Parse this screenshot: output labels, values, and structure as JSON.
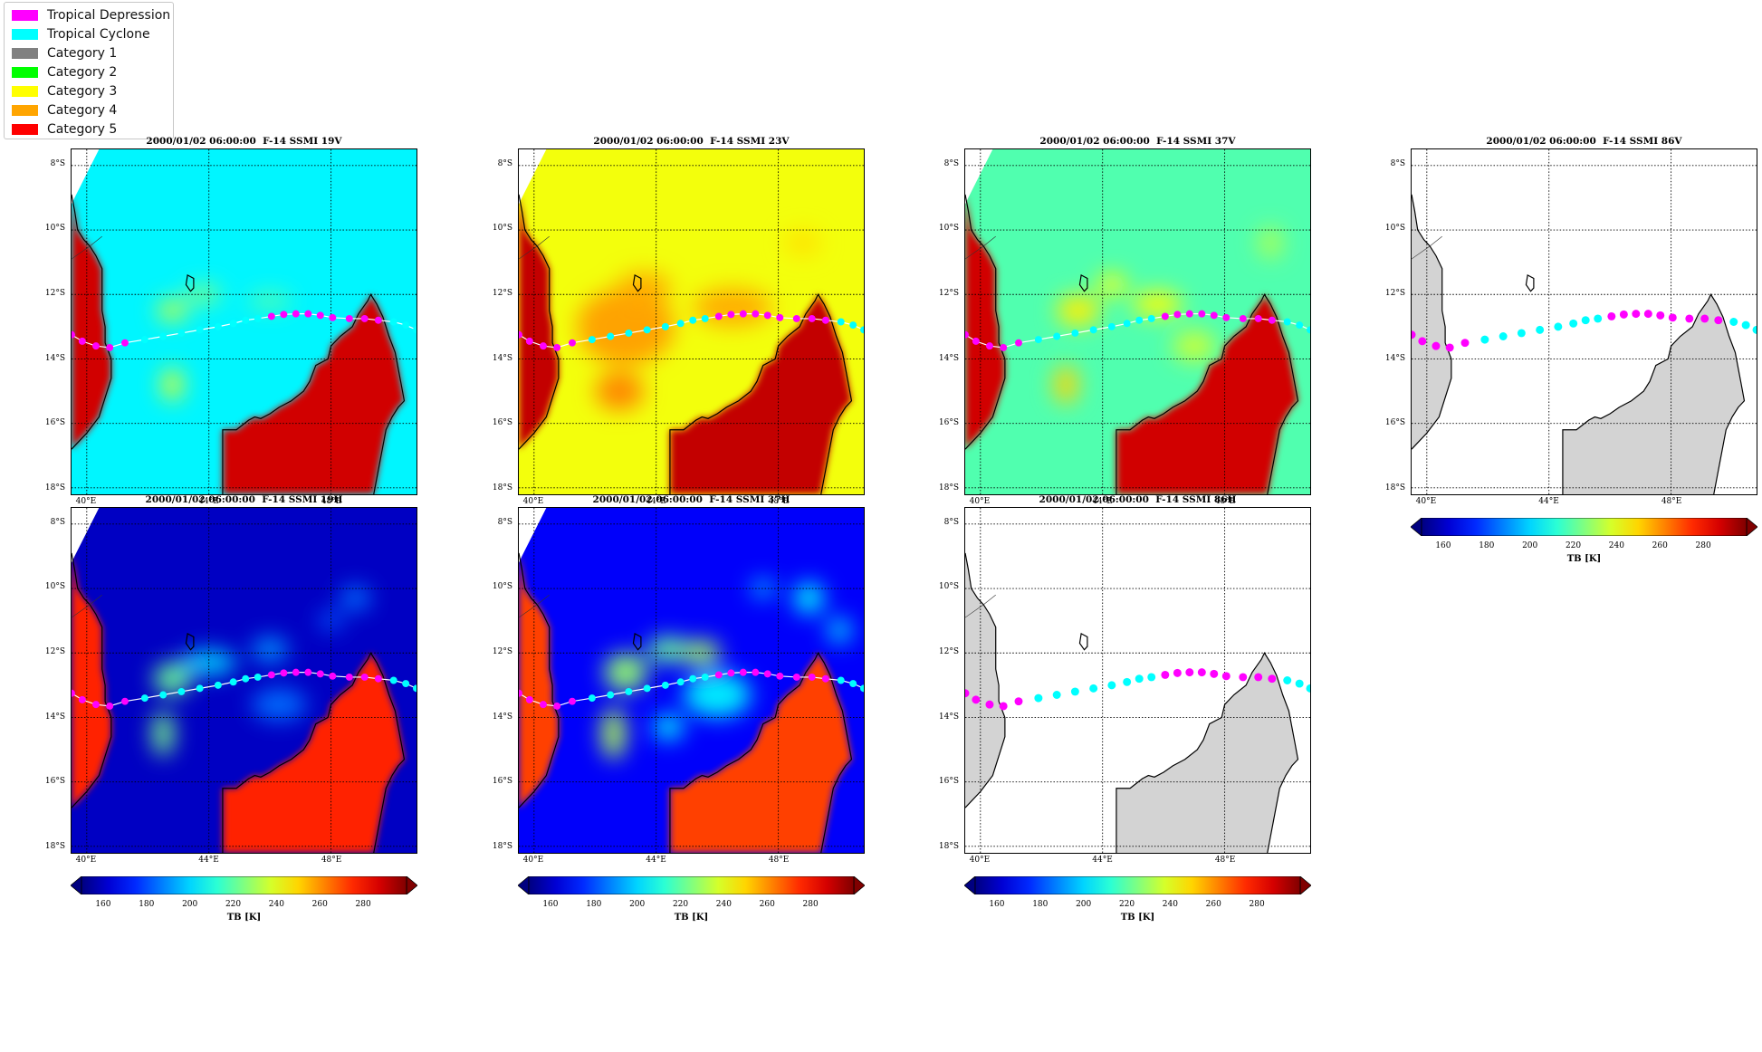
{
  "legend": {
    "items": [
      {
        "label": "Tropical Depression",
        "color": "#ff00ff"
      },
      {
        "label": "Tropical Cyclone",
        "color": "#00ffff"
      },
      {
        "label": "Category 1",
        "color": "#808080"
      },
      {
        "label": "Category 2",
        "color": "#00ff00"
      },
      {
        "label": "Category 3",
        "color": "#ffff00"
      },
      {
        "label": "Category 4",
        "color": "#ffa500"
      },
      {
        "label": "Category 5",
        "color": "#ff0000"
      }
    ]
  },
  "map_extent": {
    "lon_min": 39.5,
    "lon_max": 50.8,
    "lat_min": -18.2,
    "lat_max": -7.5
  },
  "lat_ticks": [
    {
      "value": -8,
      "label": "8°S"
    },
    {
      "value": -10,
      "label": "10°S"
    },
    {
      "value": -12,
      "label": "12°S"
    },
    {
      "value": -14,
      "label": "14°S"
    },
    {
      "value": -16,
      "label": "16°S"
    },
    {
      "value": -18,
      "label": "18°S"
    }
  ],
  "lon_ticks": [
    {
      "value": 40,
      "label": "40°E"
    },
    {
      "value": 44,
      "label": "44°E"
    },
    {
      "value": 48,
      "label": "48°E"
    }
  ],
  "colorbar": {
    "range": [
      150,
      300
    ],
    "ticks": [
      "160",
      "180",
      "200",
      "220",
      "240",
      "260",
      "280"
    ],
    "tick_values": [
      160,
      180,
      200,
      220,
      240,
      260,
      280
    ],
    "label": "TB [K]"
  },
  "panels": [
    {
      "title": "2000/01/02 06:00:00  F-14 SSMI 19V",
      "style": "v19"
    },
    {
      "title": "2000/01/02 06:00:00  F-14 SSMI 23V",
      "style": "v23"
    },
    {
      "title": "2000/01/02 06:00:00  F-14 SSMI 37V",
      "style": "v37"
    },
    {
      "title": "2000/01/02 06:00:00  F-14 SSMI 86V",
      "style": "blank"
    },
    {
      "title": "2000/01/02 06:00:00  F-14 SSMI 19H",
      "style": "h19"
    },
    {
      "title": "2000/01/02 06:00:00  F-14 SSMI 37H",
      "style": "h37"
    },
    {
      "title": "2000/01/02 06:00:00  F-14 SSMI 86H",
      "style": "blank"
    }
  ],
  "track": [
    {
      "lon": 39.5,
      "lat": -13.25,
      "cat": "Tropical Depression"
    },
    {
      "lon": 39.85,
      "lat": -13.45,
      "cat": "Tropical Depression"
    },
    {
      "lon": 40.3,
      "lat": -13.6,
      "cat": "Tropical Depression"
    },
    {
      "lon": 40.75,
      "lat": -13.65,
      "cat": "Tropical Depression"
    },
    {
      "lon": 41.25,
      "lat": -13.5,
      "cat": "Tropical Depression"
    },
    {
      "lon": 41.9,
      "lat": -13.4,
      "cat": "Tropical Cyclone"
    },
    {
      "lon": 42.5,
      "lat": -13.3,
      "cat": "Tropical Cyclone"
    },
    {
      "lon": 43.1,
      "lat": -13.2,
      "cat": "Tropical Cyclone"
    },
    {
      "lon": 43.7,
      "lat": -13.1,
      "cat": "Tropical Cyclone"
    },
    {
      "lon": 44.3,
      "lat": -13.0,
      "cat": "Tropical Cyclone"
    },
    {
      "lon": 44.8,
      "lat": -12.9,
      "cat": "Tropical Cyclone"
    },
    {
      "lon": 45.2,
      "lat": -12.8,
      "cat": "Tropical Cyclone"
    },
    {
      "lon": 45.6,
      "lat": -12.75,
      "cat": "Tropical Cyclone"
    },
    {
      "lon": 46.05,
      "lat": -12.68,
      "cat": "Tropical Depression"
    },
    {
      "lon": 46.45,
      "lat": -12.62,
      "cat": "Tropical Depression"
    },
    {
      "lon": 46.85,
      "lat": -12.6,
      "cat": "Tropical Depression"
    },
    {
      "lon": 47.25,
      "lat": -12.6,
      "cat": "Tropical Depression"
    },
    {
      "lon": 47.65,
      "lat": -12.65,
      "cat": "Tropical Depression"
    },
    {
      "lon": 48.05,
      "lat": -12.72,
      "cat": "Tropical Depression"
    },
    {
      "lon": 48.6,
      "lat": -12.75,
      "cat": "Tropical Depression"
    },
    {
      "lon": 49.1,
      "lat": -12.75,
      "cat": "Tropical Depression"
    },
    {
      "lon": 49.55,
      "lat": -12.8,
      "cat": "Tropical Depression"
    },
    {
      "lon": 50.05,
      "lat": -12.85,
      "cat": "Tropical Cyclone"
    },
    {
      "lon": 50.45,
      "lat": -12.95,
      "cat": "Tropical Cyclone"
    },
    {
      "lon": 50.8,
      "lat": -13.1,
      "cat": "Tropical Cyclone"
    }
  ]
}
